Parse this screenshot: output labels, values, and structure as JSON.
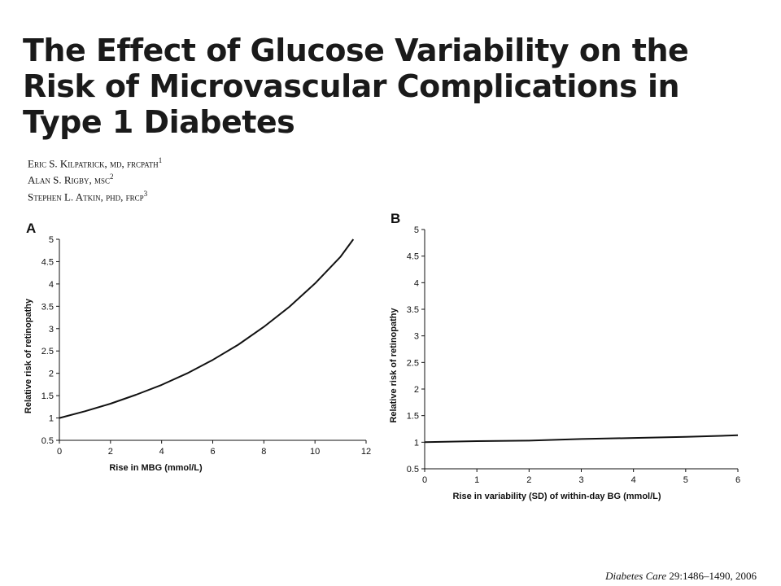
{
  "title": "The Effect of Glucose Variability on the Risk of Microvascular Complications in Type 1 Diabetes",
  "authors": [
    {
      "name": "Eric S. Kilpatrick, md, frcpath",
      "sup": "1"
    },
    {
      "name": "Alan S. Rigby, msc",
      "sup": "2"
    },
    {
      "name": "Stephen L. Atkin, phd, frcp",
      "sup": "3"
    }
  ],
  "citation": {
    "journal": "Diabetes Care",
    "details": " 29:1486–1490, 2006"
  },
  "colors": {
    "line": "#111111",
    "axis": "#111111",
    "title": "#1a1a1a"
  },
  "chart_data": [
    {
      "type": "line",
      "panel_label": "A",
      "xlabel": "Rise in MBG (mmol/L)",
      "ylabel": "Relative risk of retinopathy",
      "xlim": [
        0,
        12
      ],
      "ylim": [
        0.5,
        5
      ],
      "x_ticks": [
        "0",
        "2",
        "4",
        "6",
        "8",
        "10",
        "12"
      ],
      "y_ticks": [
        "0.5",
        "1",
        "1.5",
        "2",
        "2.5",
        "3",
        "3.5",
        "4",
        "4.5",
        "5"
      ],
      "grid": false,
      "series": [
        {
          "x": [
            0,
            1,
            2,
            3,
            4,
            5,
            6,
            7,
            8,
            9,
            10,
            11,
            11.5
          ],
          "y": [
            1.0,
            1.15,
            1.32,
            1.52,
            1.74,
            2.0,
            2.3,
            2.64,
            3.04,
            3.49,
            4.01,
            4.61,
            5.0
          ]
        }
      ]
    },
    {
      "type": "line",
      "panel_label": "B",
      "xlabel": "Rise in variability (SD) of within-day BG (mmol/L)",
      "ylabel": "Relative risk of retinopathy",
      "xlim": [
        0,
        6
      ],
      "ylim": [
        0.5,
        5
      ],
      "x_ticks": [
        "0",
        "1",
        "2",
        "3",
        "4",
        "5",
        "6"
      ],
      "y_ticks": [
        "0.5",
        "1",
        "1.5",
        "2",
        "2.5",
        "3",
        "3.5",
        "4",
        "4.5",
        "5"
      ],
      "grid": false,
      "series": [
        {
          "x": [
            0,
            1,
            2,
            3,
            4,
            5,
            6
          ],
          "y": [
            1.0,
            1.02,
            1.03,
            1.06,
            1.08,
            1.1,
            1.13
          ]
        }
      ]
    }
  ]
}
